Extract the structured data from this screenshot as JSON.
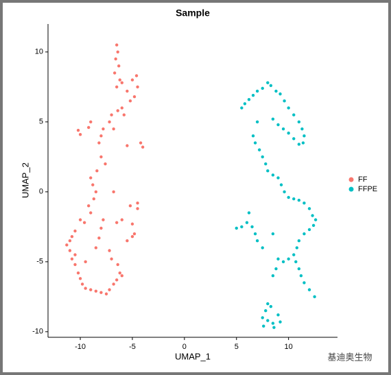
{
  "chart_data": {
    "type": "scatter",
    "title": "Sample",
    "x_label": "UMAP_1",
    "y_label": "UMAP_2",
    "xlim": [
      -13.1,
      14.7
    ],
    "ylim": [
      -10.4,
      12
    ],
    "xticks": [
      -10,
      -5,
      0,
      5,
      10
    ],
    "yticks": [
      -10,
      -5,
      0,
      5,
      10
    ],
    "grid": false,
    "legend": "right",
    "series": [
      {
        "name": "FF",
        "color": "#F8766D",
        "x": [
          -6.5,
          -6.4,
          -6.6,
          -6.3,
          -6.7,
          -6.2,
          -6.5,
          -6.0,
          -5.5,
          -5.0,
          -4.6,
          -4.5,
          -4.8,
          -5.2,
          -6.0,
          -5.8,
          -6.4,
          -7.0,
          -7.2,
          -6.8,
          -8.0,
          -8.2,
          -7.8,
          -9.0,
          -9.2,
          -10.2,
          -10.0,
          -4.2,
          -4.0,
          -5.5,
          -8.0,
          -7.6,
          -8.4,
          -9.0,
          -8.8,
          -8.5,
          -8.7,
          -9.2,
          -9.0,
          -10.0,
          -9.6,
          -10.5,
          -10.8,
          -11.0,
          -11.3,
          -11.0,
          -10.8,
          -10.5,
          -10.2,
          -10.0,
          -9.8,
          -9.5,
          -9.0,
          -8.5,
          -8.0,
          -7.5,
          -7.2,
          -6.8,
          -6.5,
          -6.2,
          -6.0,
          -6.4,
          -7.0,
          -7.2,
          -8.5,
          -8.2,
          -8.0,
          -7.8,
          -6.5,
          -6.0,
          -5.0,
          -5.2,
          -4.5,
          -4.8,
          -5.5,
          -5.0,
          -4.5,
          -6.8,
          -9.5,
          -10.5
        ],
        "y": [
          10.5,
          10.0,
          9.5,
          9.0,
          8.5,
          8.0,
          7.5,
          7.8,
          7.2,
          8.0,
          8.3,
          7.5,
          6.8,
          6.5,
          6.0,
          5.5,
          5.8,
          5.5,
          5.0,
          4.5,
          4.0,
          3.5,
          4.5,
          5.0,
          4.6,
          4.4,
          4.1,
          3.5,
          3.2,
          3.3,
          2.5,
          2.0,
          1.5,
          1.0,
          0.5,
          0.0,
          -0.5,
          -1.0,
          -1.5,
          -2.0,
          -2.2,
          -2.8,
          -3.2,
          -3.5,
          -3.8,
          -4.2,
          -4.8,
          -5.2,
          -5.8,
          -6.2,
          -6.6,
          -6.9,
          -7.0,
          -7.1,
          -7.2,
          -7.3,
          -7.0,
          -6.6,
          -6.3,
          -5.8,
          -6.0,
          -5.2,
          -4.8,
          -4.2,
          -4.0,
          -3.3,
          -2.6,
          -2.0,
          -2.2,
          -2.0,
          -2.3,
          -1.0,
          -1.2,
          -3.0,
          -3.5,
          -3.2,
          -0.8,
          0.0,
          -5.0,
          -4.5
        ]
      },
      {
        "name": "FFPE",
        "color": "#00BFC4",
        "x": [
          5.5,
          5.8,
          6.2,
          6.6,
          7.0,
          7.5,
          8.0,
          8.3,
          8.8,
          9.2,
          9.6,
          10.0,
          10.5,
          11.0,
          11.3,
          11.5,
          11.4,
          11.0,
          10.5,
          10.0,
          9.5,
          9.0,
          8.5,
          7.0,
          6.6,
          6.8,
          7.2,
          7.5,
          7.8,
          8.0,
          8.5,
          9.0,
          9.3,
          9.6,
          10.0,
          10.5,
          11.0,
          11.5,
          12.0,
          12.3,
          12.6,
          12.4,
          12.0,
          11.5,
          11.0,
          10.8,
          10.5,
          10.7,
          11.0,
          11.2,
          11.5,
          12.0,
          12.5,
          10.0,
          9.5,
          9.0,
          8.8,
          8.5,
          7.5,
          7.0,
          6.8,
          6.5,
          5.5,
          5.0,
          6.2,
          6.0,
          8.5,
          8.0,
          7.8,
          7.5,
          8.0,
          8.5,
          9.0,
          8.3,
          7.6,
          8.6,
          9.2
        ],
        "y": [
          6.0,
          6.3,
          6.6,
          6.9,
          7.2,
          7.4,
          7.8,
          7.6,
          7.2,
          7.0,
          6.5,
          6.0,
          5.5,
          5.0,
          4.5,
          4.0,
          3.5,
          3.4,
          3.8,
          4.2,
          4.5,
          4.8,
          5.2,
          5.0,
          4.0,
          3.5,
          3.0,
          2.5,
          2.0,
          1.5,
          1.2,
          1.0,
          0.5,
          0.0,
          -0.4,
          -0.5,
          -0.6,
          -0.8,
          -1.2,
          -1.7,
          -2.0,
          -2.4,
          -2.7,
          -3.0,
          -3.5,
          -4.0,
          -4.5,
          -5.0,
          -5.5,
          -6.0,
          -6.5,
          -7.0,
          -7.5,
          -4.8,
          -5.0,
          -4.8,
          -5.5,
          -6.0,
          -4.0,
          -3.5,
          -3.0,
          -2.5,
          -2.5,
          -2.6,
          -1.5,
          -2.2,
          -3.0,
          -8.0,
          -8.5,
          -9.0,
          -9.2,
          -9.4,
          -8.8,
          -8.2,
          -9.6,
          -9.7,
          -9.3
        ]
      }
    ]
  },
  "watermark": "基迪奥生物"
}
